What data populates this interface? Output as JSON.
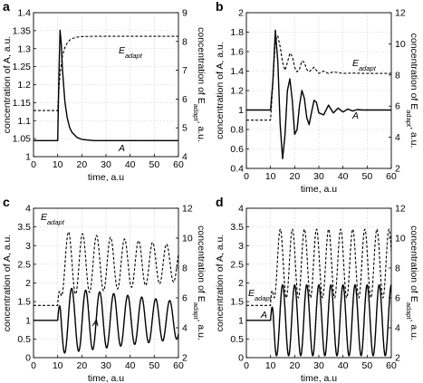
{
  "chart_data": [
    {
      "type": "line",
      "panel_label": "a",
      "xlabel": "time, a.u",
      "ylabel_left": "concentration of A, a.u.",
      "ylabel_right": "concentration of E",
      "ylabel_right_sub": "adapt",
      "ylabel_right_tail": ", a.u.",
      "xlim": [
        0,
        60
      ],
      "xticks": [
        "0",
        "10",
        "20",
        "30",
        "40",
        "50",
        "60"
      ],
      "ylim_left": [
        0.95,
        1.4
      ],
      "yticks_left": [
        "1",
        "1.05",
        "1.1",
        "1.15",
        "1.2",
        "1.25",
        "1.3",
        "1.35",
        "1.4"
      ],
      "ylim_right": [
        4,
        9
      ],
      "yticks_right": [
        "4",
        "5",
        "6",
        "7",
        "8",
        "9"
      ],
      "grid": true,
      "series": [
        {
          "name": "A",
          "style": "solid",
          "axis": "left",
          "annotation": "A",
          "x": [
            0,
            10,
            10.5,
            11,
            11.5,
            12,
            13,
            14,
            15,
            16,
            18,
            20,
            22,
            25,
            30,
            60
          ],
          "y": [
            1,
            1,
            1.2,
            1.345,
            1.3,
            1.22,
            1.12,
            1.07,
            1.04,
            1.025,
            1.01,
            1.004,
            1.002,
            1.0,
            1.0,
            1.0
          ]
        },
        {
          "name": "E",
          "sub": "adapt",
          "style": "dashed",
          "axis": "right",
          "annotation": "E",
          "x": [
            0,
            10,
            10.5,
            11,
            12,
            13,
            14,
            15,
            16,
            18,
            20,
            25,
            30,
            60
          ],
          "y": [
            5.6,
            5.6,
            6.3,
            6.9,
            7.5,
            7.8,
            7.95,
            8.05,
            8.1,
            8.15,
            8.17,
            8.18,
            8.18,
            8.18
          ]
        }
      ]
    },
    {
      "type": "line",
      "panel_label": "b",
      "xlabel": "time, a.u",
      "ylabel_left": "concentration of A, a.u.",
      "ylabel_right": "concentration of E",
      "ylabel_right_sub": "adapt",
      "ylabel_right_tail": ", a.u.",
      "xlim": [
        0,
        60
      ],
      "xticks": [
        "0",
        "10",
        "20",
        "30",
        "40",
        "50",
        "60"
      ],
      "ylim_left": [
        0.4,
        2
      ],
      "yticks_left": [
        "0.4",
        "0.6",
        "0.8",
        "1",
        "1.2",
        "1.4",
        "1.6",
        "1.8",
        "2"
      ],
      "ylim_right": [
        2,
        12
      ],
      "yticks_right": [
        "2",
        "4",
        "6",
        "8",
        "10",
        "12"
      ],
      "grid": true,
      "series": [
        {
          "name": "A",
          "style": "solid",
          "axis": "left",
          "annotation": "A",
          "x": [
            0,
            10,
            11,
            12,
            13,
            14,
            15,
            16,
            17,
            18,
            19,
            20,
            21,
            22,
            23,
            24,
            25,
            26,
            27,
            28,
            29,
            30,
            32,
            34,
            36,
            38,
            40,
            42,
            44,
            46,
            48,
            50,
            60
          ],
          "y": [
            1,
            1,
            1.3,
            1.82,
            1.5,
            0.85,
            0.5,
            0.75,
            1.2,
            1.32,
            1.1,
            0.75,
            0.8,
            1.05,
            1.2,
            1.12,
            0.92,
            0.85,
            0.98,
            1.1,
            1.08,
            0.97,
            0.95,
            1.05,
            0.97,
            1.02,
            0.98,
            1.01,
            0.99,
            1.005,
            1.0,
            1.0,
            1.0
          ]
        },
        {
          "name": "E",
          "sub": "adapt",
          "style": "dashed",
          "axis": "right",
          "annotation": "E",
          "x": [
            0,
            10,
            11,
            12,
            13,
            14,
            15,
            16,
            17,
            18,
            19,
            20,
            21,
            22,
            23,
            24,
            25,
            26,
            28,
            30,
            32,
            34,
            36,
            40,
            44,
            50,
            60
          ],
          "y": [
            5.1,
            5.1,
            7.5,
            10.2,
            10.5,
            9.8,
            8.8,
            8.3,
            8.8,
            9.4,
            9.2,
            8.5,
            8.2,
            8.4,
            8.9,
            8.8,
            8.35,
            8.2,
            8.5,
            8.1,
            8.25,
            8.1,
            8.2,
            8.1,
            8.12,
            8.1,
            8.1
          ]
        }
      ]
    },
    {
      "type": "line",
      "panel_label": "c",
      "xlabel": "time, a.u",
      "ylabel_left": "concentration of A, a.u.",
      "ylabel_right": "concentration of E",
      "ylabel_right_sub": "adapt",
      "ylabel_right_tail": ", a.u.",
      "xlim": [
        0,
        60
      ],
      "xticks": [
        "0",
        "10",
        "20",
        "30",
        "40",
        "50",
        "60"
      ],
      "ylim_left": [
        0,
        4
      ],
      "yticks_left": [
        "0",
        "0.5",
        "1",
        "1.5",
        "2",
        "2.5",
        "3",
        "3.5",
        "4"
      ],
      "ylim_right": [
        2,
        12
      ],
      "yticks_right": [
        "2",
        "4",
        "6",
        "8",
        "10",
        "12"
      ],
      "grid": true,
      "series": [
        {
          "name": "A",
          "style": "solid",
          "axis": "left",
          "annotation": "A",
          "period": 5.8,
          "start": 10,
          "baseline": 1.0,
          "amp_start": 0.9,
          "amp_end": 0.5,
          "mean": 1.0,
          "phase": 0
        },
        {
          "name": "E",
          "sub": "adapt",
          "style": "dashed",
          "axis": "right",
          "annotation": "E",
          "period": 5.8,
          "start": 10,
          "baseline": 5.5,
          "amp_start": 2.2,
          "amp_end": 1.2,
          "mean": 8.3,
          "phase": 1.4
        }
      ]
    },
    {
      "type": "line",
      "panel_label": "d",
      "xlabel": "time, a.u",
      "ylabel_left": "concentration of A, a.u.",
      "ylabel_right": "concentration of E",
      "ylabel_right_sub": "adapt",
      "ylabel_right_tail": ", a.u.",
      "xlim": [
        0,
        60
      ],
      "xticks": [
        "0",
        "10",
        "20",
        "30",
        "40",
        "50",
        "60"
      ],
      "ylim_left": [
        0,
        4
      ],
      "yticks_left": [
        "0",
        "0.5",
        "1",
        "1.5",
        "2",
        "2.5",
        "3",
        "3.5",
        "4"
      ],
      "ylim_right": [
        2,
        12
      ],
      "yticks_right": [
        "2",
        "4",
        "6",
        "8",
        "10",
        "12"
      ],
      "grid": true,
      "series": [
        {
          "name": "A",
          "style": "solid",
          "axis": "left",
          "annotation": "A",
          "period": 5.0,
          "start": 10,
          "baseline": 1.0,
          "amp_start": 0.95,
          "amp_end": 0.95,
          "mean": 1.0,
          "phase": 0
        },
        {
          "name": "E",
          "sub": "adapt",
          "style": "dashed",
          "axis": "right",
          "annotation": "E",
          "period": 5.0,
          "start": 10,
          "baseline": 5.5,
          "amp_start": 2.3,
          "amp_end": 2.3,
          "mean": 8.3,
          "phase": 1.2
        }
      ]
    }
  ]
}
